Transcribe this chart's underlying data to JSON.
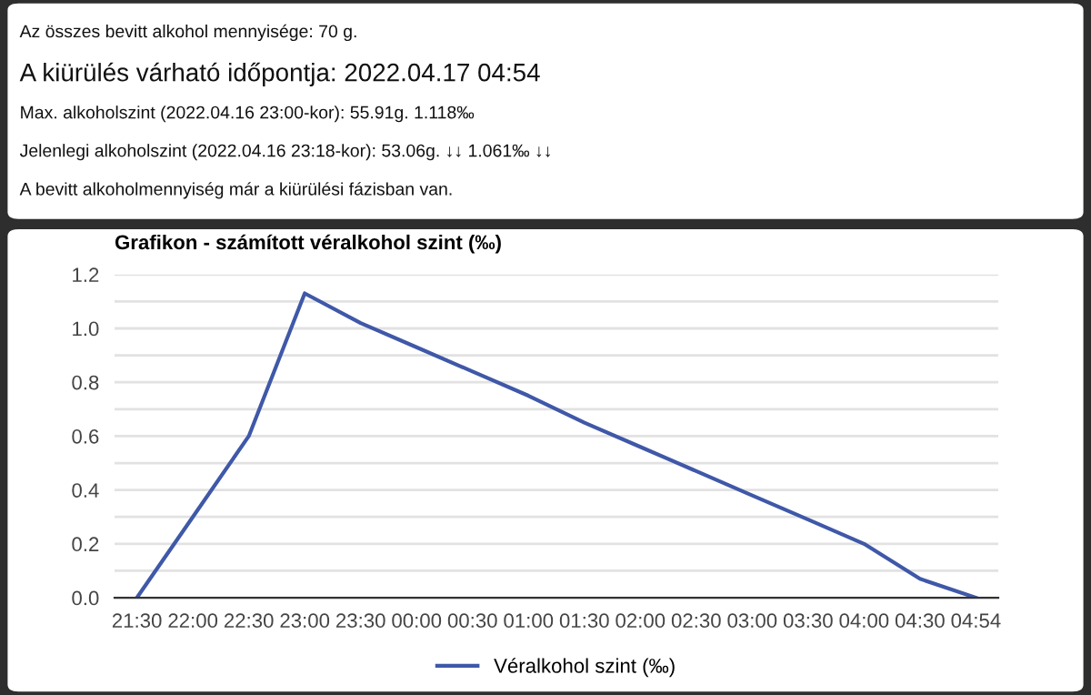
{
  "chart_data": [
    {
      "type": "other",
      "title": "A kiürülés várható időpontja: 2022.04.17 04:54",
      "annotations": [
        "Az összes bevitt alkohol mennyisége: 70 g.",
        "Max. alkoholszint (2022.04.16 23:00-kor): 55.91g. 1.118‰",
        "Jelenlegi alkoholszint (2022.04.16 23:18-kor): 53.06g. ↓↓ 1.061‰ ↓↓",
        "A bevitt alkoholmennyiség már a kiürülési fázisban van."
      ]
    },
    {
      "type": "line",
      "title": "Grafikon - számított véralkohol szint (‰)",
      "categories": [
        "21:30",
        "22:00",
        "22:30",
        "23:00",
        "23:30",
        "00:00",
        "00:30",
        "01:00",
        "01:30",
        "02:00",
        "02:30",
        "03:00",
        "03:30",
        "04:00",
        "04:30",
        "04:54"
      ],
      "series": [
        {
          "name": "Véralkohol szint (‰)",
          "color": "#3f58a8",
          "values": [
            0,
            0.3,
            0.6,
            1.13,
            1.02,
            0.93,
            0.84,
            0.75,
            0.65,
            0.56,
            0.47,
            0.38,
            0.29,
            0.2,
            0.07,
            0
          ]
        }
      ],
      "ylim": [
        0,
        1.2
      ],
      "yticks": [
        "0.0",
        {
          "value": 0.1,
          "label": null
        },
        {
          "value": 0.2,
          "label": "0.2"
        },
        {
          "value": 0.3,
          "label": null
        },
        {
          "value": 0.4,
          "label": "0.4"
        },
        {
          "value": 0.5,
          "label": null
        },
        {
          "value": 0.6,
          "label": "0.6"
        },
        {
          "value": 0.7,
          "label": null
        },
        {
          "value": 0.8,
          "label": "0.8"
        },
        {
          "value": 0.9,
          "label": null
        },
        {
          "value": 1.0,
          "label": "1.0"
        },
        {
          "value": 1.1,
          "label": null
        },
        {
          "value": 1.2,
          "label": "1.2"
        }
      ],
      "grid": "y",
      "legend": "bottom",
      "marker": "none",
      "line_style": "solid"
    }
  ]
}
